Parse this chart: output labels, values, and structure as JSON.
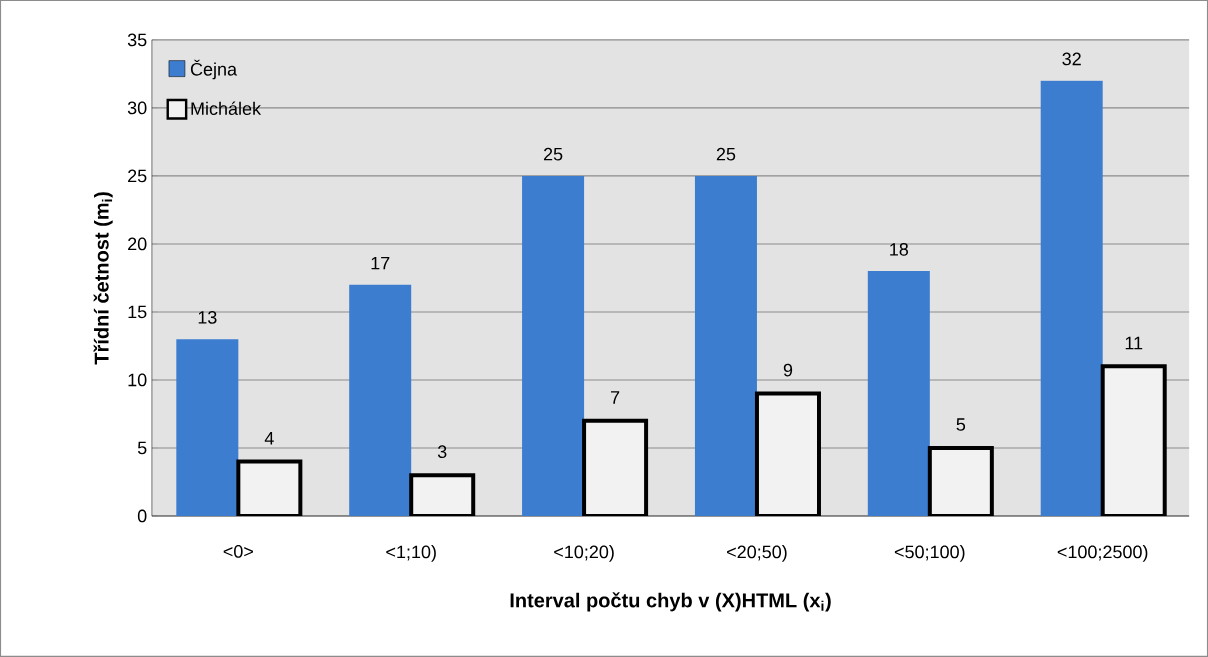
{
  "chart_data": {
    "type": "bar",
    "xlabel": "Interval počtu chyb v (X)HTML (x$_{i}$)",
    "ylabel": "Třídní četnost (m$_{i}$)",
    "categories": [
      "<0>",
      "<1;10)",
      "<10;20)",
      "<20;50)",
      "<50;100)",
      "<100;2500)"
    ],
    "series": [
      {
        "name": "Čejna",
        "color": "#3c7dd0",
        "values": [
          13,
          17,
          25,
          25,
          18,
          32
        ]
      },
      {
        "name": "Michálek",
        "color": "#f2f2f2",
        "values": [
          4,
          3,
          7,
          9,
          5,
          11
        ]
      }
    ],
    "ylim": [
      0,
      35
    ],
    "yticks": [
      0,
      5,
      10,
      15,
      20,
      25,
      30,
      35
    ],
    "grid": "y",
    "legend": "top left",
    "data_labels": true
  }
}
